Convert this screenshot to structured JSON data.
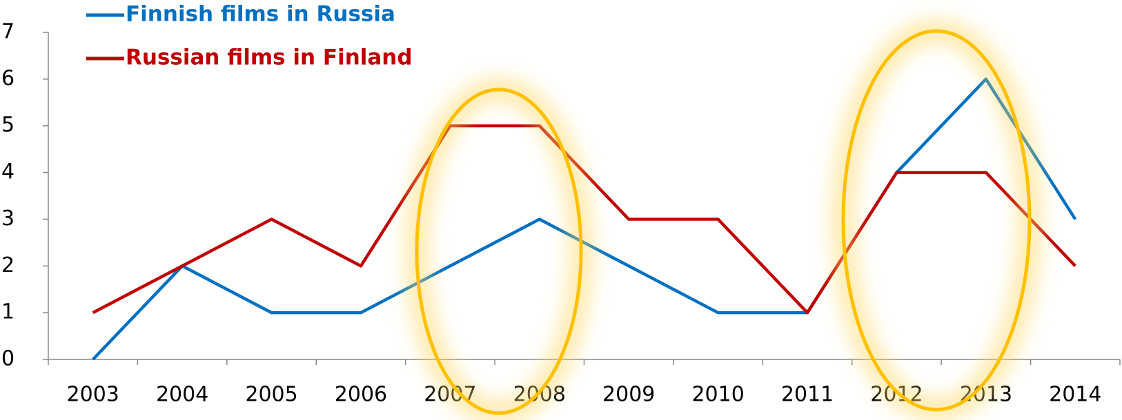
{
  "chart_data": {
    "type": "line",
    "categories": [
      "2003",
      "2004",
      "2005",
      "2006",
      "2007",
      "2008",
      "2009",
      "2010",
      "2011",
      "2012",
      "2013",
      "2014"
    ],
    "series": [
      {
        "name": "Finnish films in Russia",
        "color": "#0070c0",
        "values": [
          0,
          2,
          1,
          1,
          2,
          3,
          2,
          1,
          1,
          4,
          6,
          3
        ]
      },
      {
        "name": "Russian films in Finland",
        "color": "#c00000",
        "values": [
          1,
          2,
          3,
          2,
          5,
          5,
          3,
          3,
          1,
          4,
          4,
          2
        ]
      }
    ],
    "ylim": [
      0,
      7
    ],
    "yticks": [
      0,
      1,
      2,
      3,
      4,
      5,
      6,
      7
    ],
    "legend": "top-left"
  }
}
